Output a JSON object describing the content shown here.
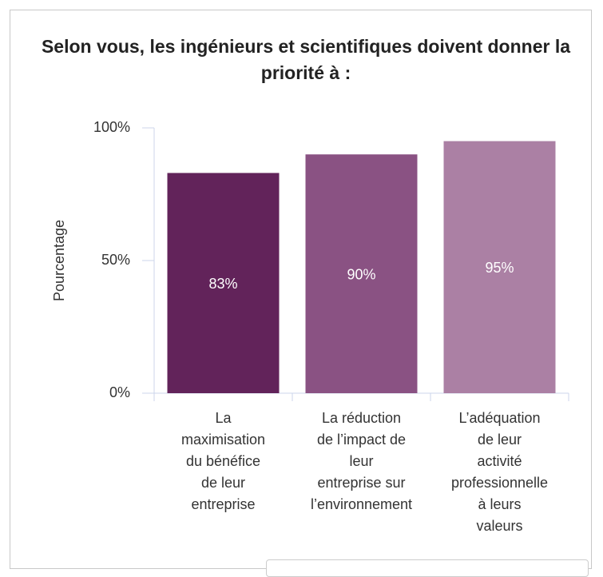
{
  "chart_data": {
    "type": "bar",
    "title": "Selon vous, les ingénieurs et scientifiques doivent donner la priorité à :",
    "ylabel": "Pourcentage",
    "categories": [
      "La\nmaximisation\ndu bénéfice\nde leur\nentreprise",
      "La réduction\nde l’impact de\nleur\nentreprise sur\nl’environnement",
      "L’adéquation\nde leur\nactivité\nprofessionnelle\nà leurs\nvaleurs"
    ],
    "values": [
      83,
      90,
      95
    ],
    "value_labels": [
      "83%",
      "90%",
      "95%"
    ],
    "colors": [
      "#62235a",
      "#8a5283",
      "#ab80a4"
    ],
    "ylim": [
      0,
      100
    ],
    "yticks": [
      {
        "value": 0,
        "label": "0%"
      },
      {
        "value": 50,
        "label": "50%"
      },
      {
        "value": 100,
        "label": "100%"
      }
    ],
    "grid": false
  }
}
